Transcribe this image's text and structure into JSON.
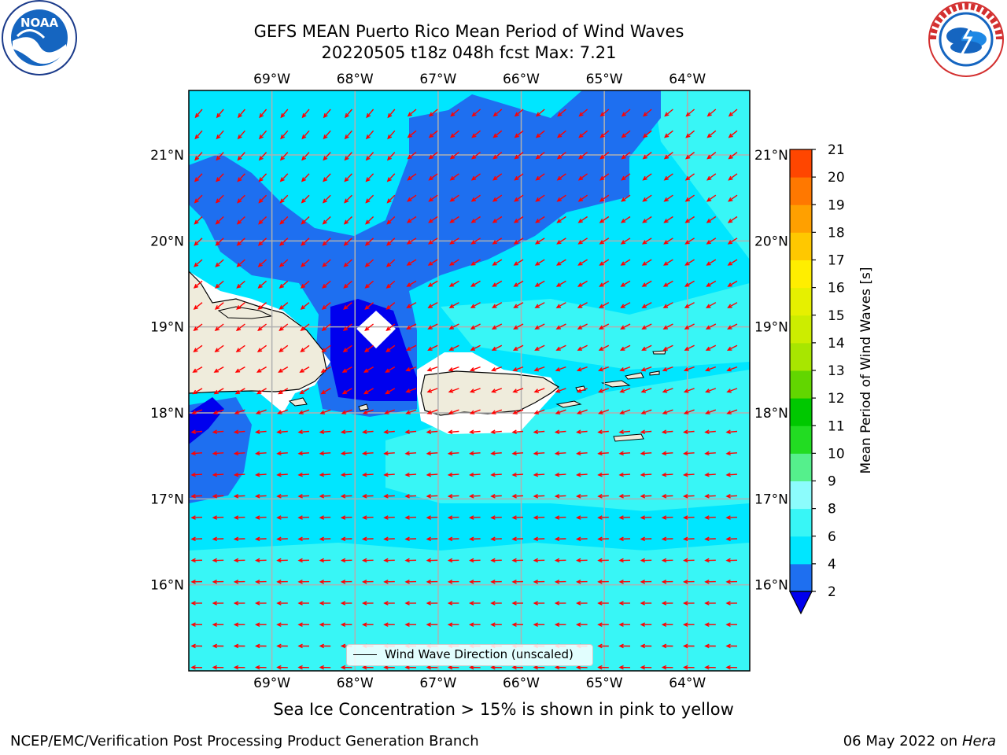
{
  "header": {
    "title_line1": "GEFS MEAN Puerto Rico Mean Period of Wind Waves",
    "title_line2": "20220505 t18z 048h fcst   Max: 7.21"
  },
  "logos": {
    "noaa": {
      "icon": "noaa-logo",
      "text": "NOAA",
      "ring_text": "NATIONAL OCEANIC AND ATMOSPHERIC ADMINISTRATION · U.S. DEPARTMENT OF COMMERCE"
    },
    "nws": {
      "icon": "nws-logo",
      "ring_text": "NATIONAL WEATHER SERVICE"
    }
  },
  "map": {
    "lon_ticks": [
      "69°W",
      "68°W",
      "67°W",
      "66°W",
      "65°W",
      "64°W"
    ],
    "lat_ticks": [
      "21°N",
      "20°N",
      "19°N",
      "18°N",
      "17°N",
      "16°N"
    ],
    "lon_range": [
      -70.0,
      -63.25
    ],
    "lat_range": [
      15.0,
      21.75
    ],
    "land_color": "#efecdc",
    "arrow_color": "#ff0000",
    "grid_color": "#b0b0b0",
    "legend_label": "Wind Wave Direction (unscaled)"
  },
  "colorbar": {
    "label": "Mean Period of Wind Waves [s]",
    "ticks": [
      "2",
      "4",
      "6",
      "8",
      "9",
      "10",
      "11",
      "12",
      "13",
      "14",
      "15",
      "16",
      "17",
      "18",
      "19",
      "20",
      "21"
    ],
    "colors": [
      "#1e6ff0",
      "#00e6ff",
      "#38f6f6",
      "#8cfcfc",
      "#55f08c",
      "#22dc22",
      "#00c800",
      "#62d600",
      "#a8e600",
      "#cced00",
      "#e6f000",
      "#ffee00",
      "#ffc800",
      "#ffa000",
      "#ff7800",
      "#ff4600",
      "#ff0000"
    ],
    "under_color": "#0000ee"
  },
  "captions": {
    "ice_note": "Sea Ice Concentration > 15% is shown in pink to yellow",
    "footer_left": "NCEP/EMC/Verification Post Processing Product Generation Branch",
    "footer_date": "06 May 2022 on",
    "footer_host": "Hera"
  }
}
